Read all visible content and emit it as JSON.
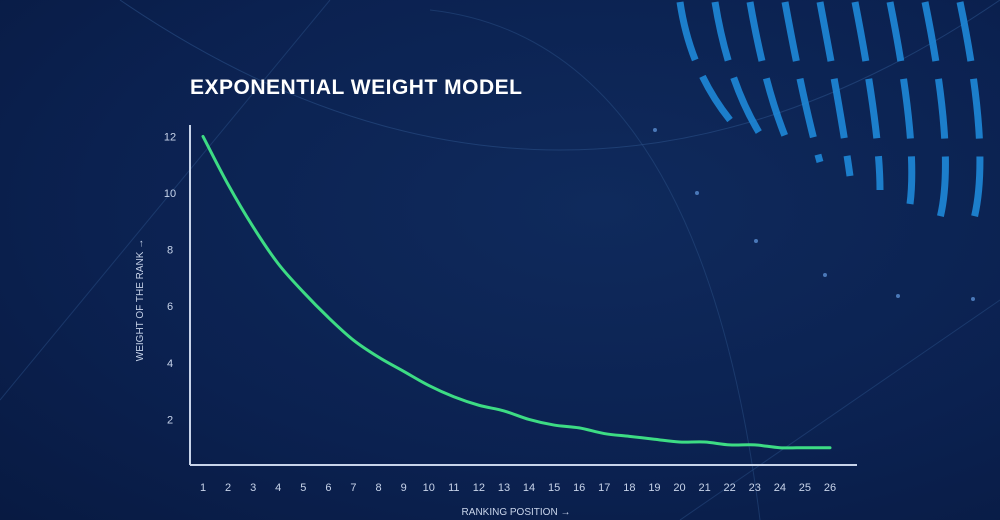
{
  "chart_data": {
    "type": "line",
    "title": "EXPONENTIAL WEIGHT MODEL",
    "xlabel": "RANKING POSITION →",
    "ylabel": "WEIGHT OF THE RANK →",
    "x": [
      1,
      2,
      3,
      4,
      5,
      6,
      7,
      8,
      9,
      10,
      11,
      12,
      13,
      14,
      15,
      16,
      17,
      18,
      19,
      20,
      21,
      22,
      23,
      24,
      25,
      26
    ],
    "x_tick_labels": [
      "1",
      "2",
      "3",
      "4",
      "5",
      "6",
      "7",
      "8",
      "9",
      "10",
      "11",
      "12",
      "13",
      "14",
      "15",
      "16",
      "17",
      "18",
      "19",
      "20",
      "21",
      "22",
      "23",
      "24",
      "25",
      "26"
    ],
    "y_tick_labels": [
      "2",
      "4",
      "6",
      "8",
      "10",
      "12"
    ],
    "y_ticks": [
      2,
      4,
      6,
      8,
      10,
      12
    ],
    "series": [
      {
        "values": [
          12.0,
          10.3,
          8.8,
          7.5,
          6.5,
          5.6,
          4.8,
          4.2,
          3.7,
          3.2,
          2.8,
          2.5,
          2.3,
          2.0,
          1.8,
          1.7,
          1.5,
          1.4,
          1.3,
          1.2,
          1.2,
          1.1,
          1.1,
          1.0,
          1.0,
          1.0
        ],
        "color": "#3ddc84"
      }
    ],
    "ylim": [
      0.4,
      12.5
    ],
    "xlim": [
      1,
      26
    ],
    "grid": false,
    "colors": {
      "background": "#0b2150",
      "axis": "#c8d4ea",
      "text": "#c8d4ea",
      "title": "#ffffff",
      "decor": "#1e88d8"
    }
  }
}
